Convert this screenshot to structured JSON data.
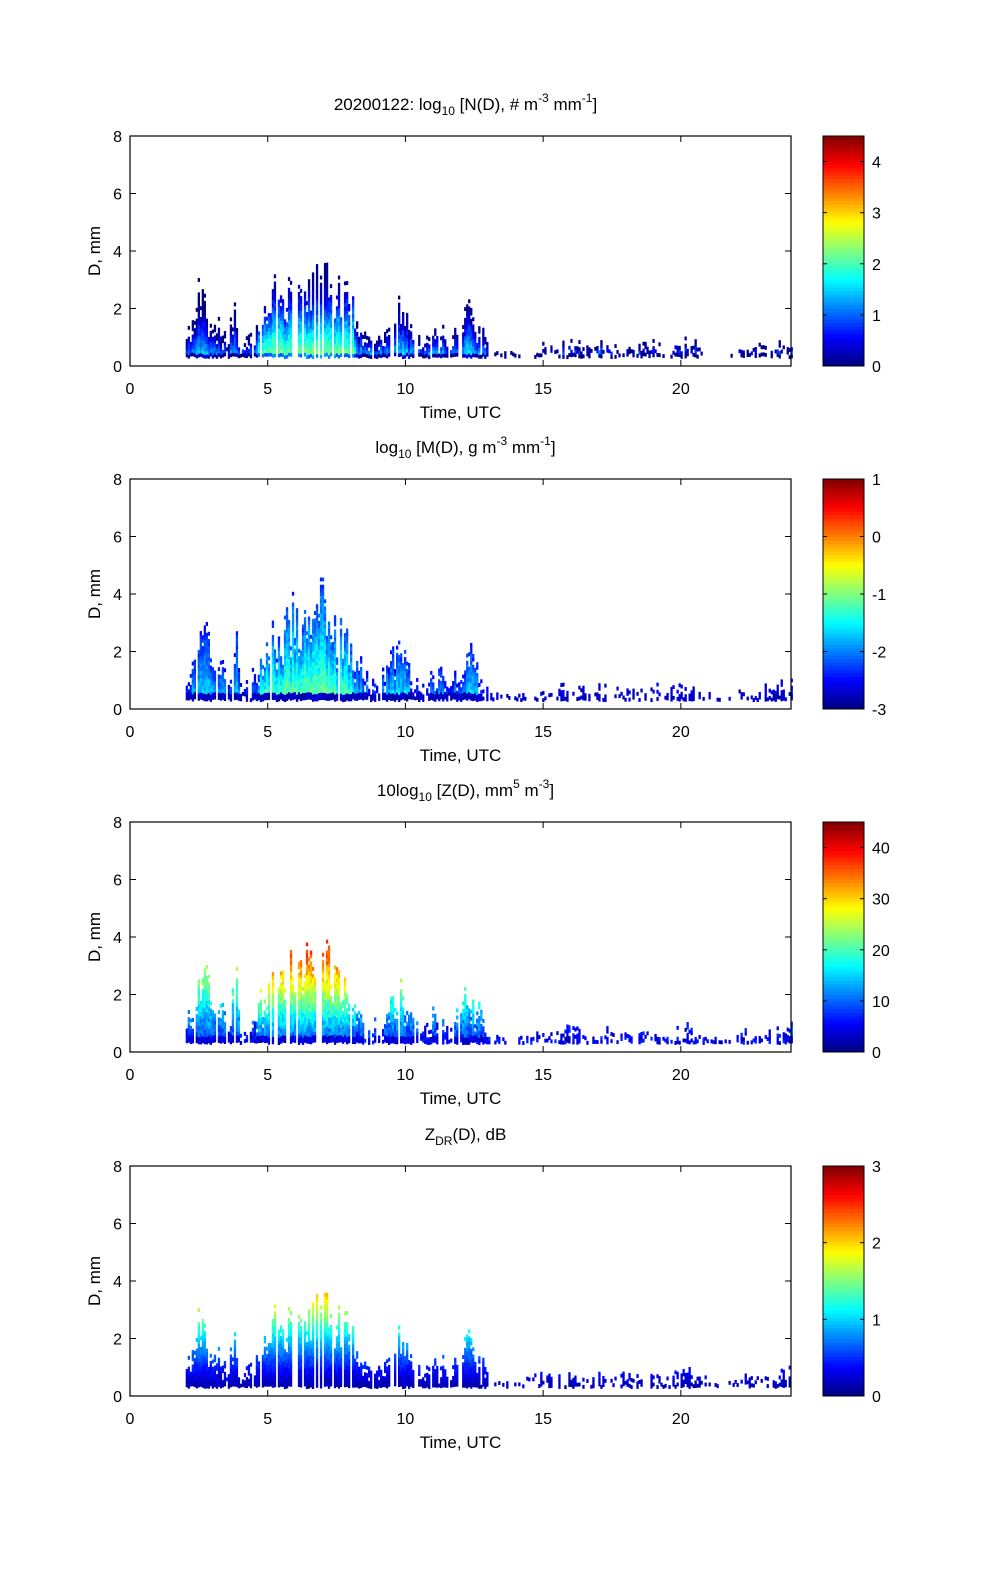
{
  "chart_data": [
    {
      "type": "heatmap",
      "title": {
        "main": "20200122: log",
        "sub": "10",
        "rest": " [N(D), # m",
        "sup1": "-3",
        "mid": " mm",
        "sup2": "-1",
        "end": "]"
      },
      "xlabel": "Time, UTC",
      "ylabel": "D, mm",
      "xlim": [
        0,
        24
      ],
      "ylim": [
        0,
        8
      ],
      "xticks": [
        "0",
        "5",
        "10",
        "15",
        "20"
      ],
      "yticks": [
        "0",
        "2",
        "4",
        "6",
        "8"
      ],
      "colorbar": {
        "range": [
          0,
          4.5
        ],
        "ticks": [
          "0",
          "1",
          "2",
          "3",
          "4"
        ],
        "tick_values": [
          0,
          1,
          2,
          3,
          4
        ]
      },
      "profile": "concentration"
    },
    {
      "type": "heatmap",
      "title": {
        "main": "log",
        "sub": "10",
        "rest": " [M(D), g m",
        "sup1": "-3",
        "mid": " mm",
        "sup2": "-1",
        "end": "]"
      },
      "xlabel": "Time, UTC",
      "ylabel": "D, mm",
      "xlim": [
        0,
        24
      ],
      "ylim": [
        0,
        8
      ],
      "xticks": [
        "0",
        "5",
        "10",
        "15",
        "20"
      ],
      "yticks": [
        "0",
        "2",
        "4",
        "6",
        "8"
      ],
      "colorbar": {
        "range": [
          -3,
          1
        ],
        "ticks": [
          "-3",
          "-2",
          "-1",
          "0",
          "1"
        ],
        "tick_values": [
          -3,
          -2,
          -1,
          0,
          1
        ]
      },
      "profile": "mass"
    },
    {
      "type": "heatmap",
      "title": {
        "main": "10log",
        "sub": "10",
        "rest": " [Z(D),  mm",
        "sup1": "5",
        "mid": " m",
        "sup2": "-3",
        "end": "]"
      },
      "xlabel": "Time, UTC",
      "ylabel": "D, mm",
      "xlim": [
        0,
        24
      ],
      "ylim": [
        0,
        8
      ],
      "xticks": [
        "0",
        "5",
        "10",
        "15",
        "20"
      ],
      "yticks": [
        "0",
        "2",
        "4",
        "6",
        "8"
      ],
      "colorbar": {
        "range": [
          0,
          45
        ],
        "ticks": [
          "0",
          "10",
          "20",
          "30",
          "40"
        ],
        "tick_values": [
          0,
          10,
          20,
          30,
          40
        ]
      },
      "profile": "reflectivity"
    },
    {
      "type": "heatmap",
      "title": {
        "main": "Z",
        "sub": "DR",
        "rest": "(D), dB",
        "sup1": "",
        "mid": "",
        "sup2": "",
        "end": ""
      },
      "xlabel": "Time, UTC",
      "ylabel": "D, mm",
      "xlim": [
        0,
        24
      ],
      "ylim": [
        0,
        8
      ],
      "xticks": [
        "0",
        "5",
        "10",
        "15",
        "20"
      ],
      "yticks": [
        "0",
        "2",
        "4",
        "6",
        "8"
      ],
      "colorbar": {
        "range": [
          0,
          3
        ],
        "ticks": [
          "0",
          "1",
          "2",
          "3"
        ],
        "tick_values": [
          0,
          1,
          2,
          3
        ]
      },
      "profile": "zdr"
    }
  ],
  "precip_envelope": {
    "time_hours": [
      2.0,
      2.2,
      2.5,
      2.7,
      3.0,
      3.3,
      3.5,
      3.8,
      4.0,
      4.3,
      4.6,
      5.0,
      5.5,
      6.0,
      6.5,
      7.0,
      7.5,
      8.0,
      8.5,
      9.0,
      9.5,
      9.8,
      10.2,
      10.6,
      11.0,
      11.3,
      11.6,
      12.0,
      12.3,
      12.6,
      13.0,
      13.5,
      14.0,
      14.5,
      15.0,
      15.5,
      16.0,
      16.5,
      17.0,
      17.5,
      18.0,
      18.5,
      19.0,
      19.5,
      20.0,
      20.5,
      21.0,
      21.5,
      22.0,
      22.5,
      23.0,
      23.5,
      24.0
    ],
    "max_diameter_mm": [
      1.2,
      1.6,
      3.0,
      3.0,
      1.6,
      1.7,
      0.8,
      3.2,
      0.8,
      1.0,
      1.8,
      2.6,
      3.2,
      3.8,
      3.4,
      4.4,
      3.0,
      2.6,
      1.2,
      1.0,
      2.2,
      2.4,
      1.4,
      0.8,
      1.4,
      1.3,
      0.8,
      1.8,
      2.4,
      1.6,
      0.6,
      0.4,
      0.4,
      0.6,
      0.7,
      0.7,
      0.9,
      0.7,
      0.8,
      0.7,
      0.7,
      0.8,
      0.8,
      0.6,
      0.9,
      0.8,
      0.5,
      0.3,
      0.6,
      0.7,
      0.8,
      0.8,
      1.0
    ]
  }
}
